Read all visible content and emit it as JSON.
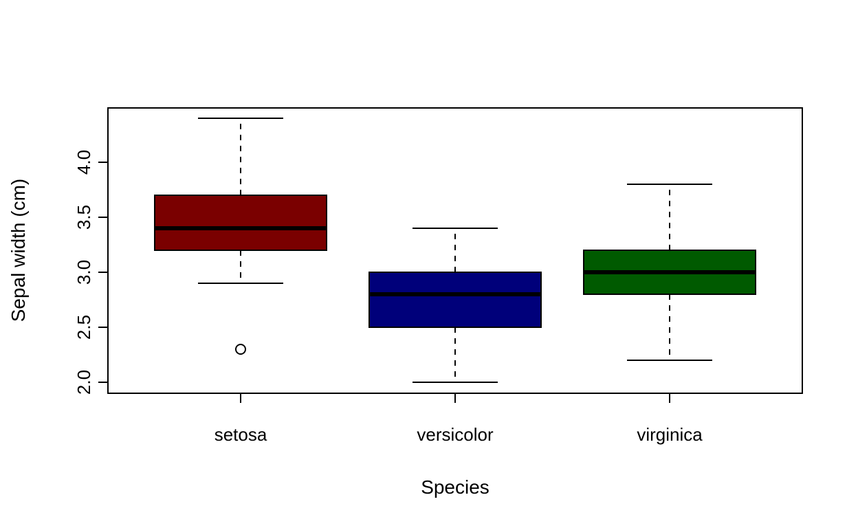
{
  "chart_data": {
    "type": "boxplot",
    "xlabel": "Species",
    "ylabel": "Sepal width (cm)",
    "ylim": [
      1.9,
      4.5
    ],
    "yticks": [
      "2.0",
      "2.5",
      "3.0",
      "3.5",
      "4.0"
    ],
    "grid": false,
    "categories": [
      "setosa",
      "versicolor",
      "virginica"
    ],
    "boxes": [
      {
        "category": "setosa",
        "min": 2.9,
        "q1": 3.2,
        "median": 3.4,
        "q3": 3.7,
        "max": 4.4,
        "outliers": [
          2.3
        ],
        "color": "#7a0000"
      },
      {
        "category": "versicolor",
        "min": 2.0,
        "q1": 2.5,
        "median": 2.8,
        "q3": 3.0,
        "max": 3.4,
        "outliers": [],
        "color": "#00007a"
      },
      {
        "category": "virginica",
        "min": 2.2,
        "q1": 2.8,
        "median": 3.0,
        "q3": 3.2,
        "max": 3.8,
        "outliers": [],
        "color": "#005a00"
      }
    ]
  }
}
